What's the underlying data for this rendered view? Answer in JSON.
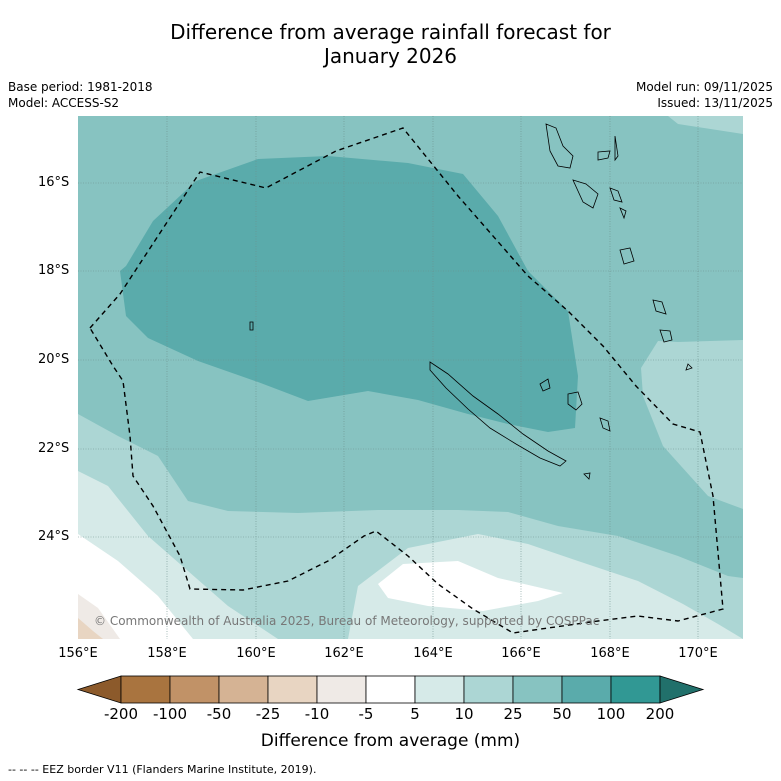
{
  "title_line1": "Difference from average rainfall forecast for",
  "title_line2": "January 2026",
  "base_period": "Base period: 1981-2018",
  "model": "Model: ACCESS-S2",
  "model_run": "Model run: 09/11/2025",
  "issued": "Issued: 13/11/2025",
  "copyright": "© Commonwealth of Australia 2025, Bureau of Meteorology, supported by COSPPac",
  "lat_labels": [
    "16°S",
    "18°S",
    "20°S",
    "22°S",
    "24°S"
  ],
  "lon_labels": [
    "156°E",
    "158°E",
    "160°E",
    "162°E",
    "164°E",
    "166°E",
    "168°E",
    "170°E"
  ],
  "legend": {
    "title": "Difference from average (mm)",
    "ticks": [
      "-200",
      "-100",
      "-50",
      "-25",
      "-10",
      "-5",
      "5",
      "10",
      "25",
      "50",
      "100",
      "200"
    ],
    "colors": [
      "#8c5a2b",
      "#a9743f",
      "#c19267",
      "#d5b394",
      "#e8d5c2",
      "#efeae6",
      "#ffffff",
      "#d6eae8",
      "#acd6d4",
      "#87c3c1",
      "#5aabab",
      "#319894",
      "#21706b"
    ]
  },
  "footnote": "--  --  -- EEZ border V11 (Flanders Marine Institute, 2019)."
}
